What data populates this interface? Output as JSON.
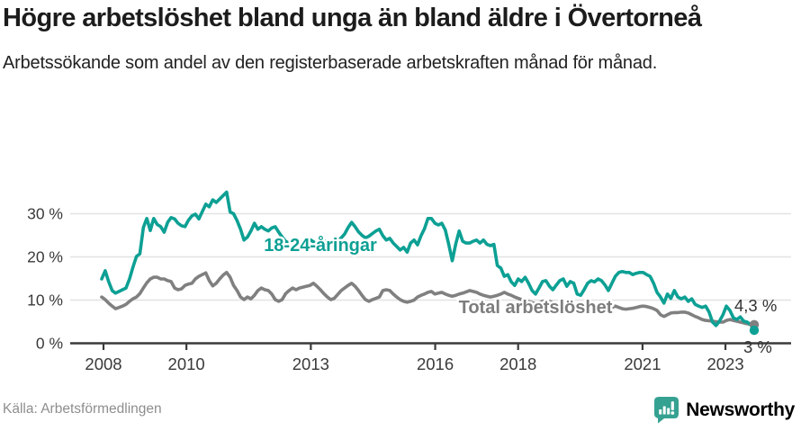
{
  "header": {
    "title": "Högre arbetslöshet bland unga än bland äldre i Övertorneå",
    "subtitle": "Arbetssökande som andel av den registerbaserade arbetskraften månad för månad."
  },
  "footer": {
    "source": "Källa: Arbetsförmedlingen",
    "logo_text": "Newsworthy",
    "logo_icon": "newsworthy-speech-bubble-bar-chart"
  },
  "colors": {
    "youth_line": "#0da094",
    "total_line": "#808080",
    "total_label": "#7d7d7d",
    "axis": "#3a3a3a",
    "grid": "#e2e2e2",
    "end_label": "#333333",
    "logo_teal": "#35a191"
  },
  "chart_data": {
    "type": "line",
    "title": "Högre arbetslöshet bland unga än bland äldre i Övertorneå",
    "subtitle": "Arbetssökande som andel av den registerbaserade arbetskraften månad för månad.",
    "x_unit": "month",
    "x_start": "2008-01",
    "x_end": "2023-09",
    "x_tick_years": [
      2008,
      2010,
      2013,
      2016,
      2018,
      2021,
      2023
    ],
    "y_ticks": [
      {
        "label": "0 %",
        "value": 0
      },
      {
        "label": "10 %",
        "value": 10
      },
      {
        "label": "20 %",
        "value": 20
      },
      {
        "label": "30 %",
        "value": 30
      }
    ],
    "ylim": [
      0,
      36
    ],
    "grid": "horizontal",
    "legend_position": "inline-labels",
    "series": [
      {
        "name": "Total arbetslöshet",
        "color": "#808080",
        "end_label": "4,3 %",
        "end_value": 4.3,
        "values": [
          10.7,
          10.1,
          9.3,
          8.6,
          8.0,
          8.3,
          8.6,
          9.0,
          9.7,
          10.3,
          10.7,
          11.5,
          12.8,
          14.0,
          14.9,
          15.3,
          15.3,
          14.9,
          14.9,
          14.5,
          14.3,
          12.8,
          12.4,
          12.6,
          13.4,
          13.7,
          13.9,
          14.9,
          15.5,
          15.9,
          16.3,
          14.5,
          13.3,
          13.9,
          14.9,
          15.8,
          16.4,
          15.3,
          13.4,
          12.2,
          10.7,
          10.1,
          10.7,
          10.3,
          11.1,
          12.2,
          12.8,
          12.4,
          12.2,
          11.4,
          10.1,
          9.7,
          10.1,
          11.5,
          12.2,
          12.8,
          12.4,
          12.8,
          13.0,
          13.2,
          13.4,
          13.9,
          13.2,
          12.4,
          11.5,
          10.7,
          10.1,
          10.4,
          11.3,
          12.2,
          12.8,
          13.4,
          13.9,
          13.2,
          12.2,
          11.1,
          10.1,
          9.7,
          10.1,
          10.4,
          10.7,
          12.2,
          12.4,
          12.2,
          11.4,
          10.7,
          10.1,
          9.7,
          9.5,
          9.7,
          10.0,
          10.7,
          11.1,
          11.4,
          11.8,
          12.0,
          11.4,
          11.6,
          11.8,
          11.4,
          11.1,
          10.9,
          11.1,
          11.4,
          11.6,
          11.9,
          12.2,
          12.0,
          11.8,
          11.4,
          11.1,
          10.9,
          10.7,
          10.9,
          11.1,
          11.4,
          11.8,
          11.4,
          11.1,
          10.7,
          10.4,
          10.1,
          9.9,
          9.7,
          9.4,
          9.2,
          9.4,
          9.7,
          9.9,
          9.7,
          9.4,
          9.2,
          9.0,
          8.8,
          8.6,
          8.4,
          8.3,
          8.1,
          8.3,
          8.4,
          8.6,
          8.4,
          8.3,
          8.1,
          7.9,
          7.7,
          7.9,
          8.3,
          8.6,
          8.3,
          8.0,
          7.9,
          8.0,
          8.1,
          8.3,
          8.5,
          8.6,
          8.5,
          8.3,
          8.0,
          7.6,
          6.6,
          6.2,
          6.6,
          7.0,
          7.1,
          7.1,
          7.2,
          7.2,
          7.0,
          6.6,
          6.2,
          5.9,
          5.5,
          5.3,
          5.2,
          5.1,
          5.0,
          4.9,
          4.9,
          5.3,
          5.5,
          5.3,
          5.1,
          4.9,
          4.7,
          4.5,
          4.4,
          4.3
        ]
      },
      {
        "name": "18-24-åringar",
        "color": "#0da094",
        "end_label": "3 %",
        "end_value": 3.0,
        "values": [
          14.9,
          16.8,
          14.3,
          12.2,
          11.6,
          12.0,
          12.4,
          12.8,
          14.9,
          17.6,
          20.1,
          20.7,
          26.8,
          28.9,
          26.1,
          28.9,
          27.5,
          27.0,
          25.7,
          28.0,
          29.1,
          28.8,
          27.8,
          27.2,
          27.0,
          28.5,
          29.5,
          29.9,
          28.8,
          30.5,
          32.2,
          31.6,
          33.2,
          32.6,
          33.4,
          34.2,
          35.0,
          30.4,
          30.0,
          28.4,
          26.4,
          23.9,
          24.6,
          26.0,
          27.8,
          26.4,
          27.0,
          26.4,
          26.0,
          26.7,
          27.0,
          25.7,
          24.6,
          23.6,
          23.2,
          23.6,
          24.0,
          23.6,
          23.2,
          23.6,
          24.0,
          23.5,
          23.0,
          23.4,
          23.8,
          23.4,
          23.0,
          23.4,
          23.8,
          24.4,
          25.3,
          26.8,
          28.0,
          27.0,
          25.8,
          25.0,
          24.4,
          24.8,
          25.4,
          26.0,
          26.4,
          24.9,
          23.9,
          24.3,
          23.2,
          22.4,
          21.6,
          22.2,
          21.1,
          23.2,
          23.9,
          22.8,
          24.9,
          26.5,
          28.9,
          28.9,
          27.8,
          27.4,
          27.8,
          26.2,
          22.9,
          19.1,
          23.0,
          26.0,
          23.6,
          23.2,
          23.2,
          23.6,
          23.9,
          23.2,
          23.9,
          22.9,
          22.6,
          22.9,
          18.0,
          17.4,
          15.5,
          15.9,
          14.2,
          13.4,
          14.9,
          14.3,
          15.3,
          13.9,
          12.2,
          11.4,
          12.8,
          14.3,
          14.5,
          13.2,
          12.4,
          13.5,
          14.5,
          14.9,
          13.2,
          14.3,
          13.9,
          11.4,
          11.1,
          12.4,
          13.9,
          14.5,
          14.2,
          14.9,
          14.5,
          13.5,
          12.2,
          13.9,
          15.5,
          16.4,
          16.6,
          16.4,
          16.4,
          15.9,
          16.2,
          16.4,
          16.4,
          15.9,
          15.5,
          13.9,
          11.8,
          10.7,
          9.3,
          11.4,
          10.4,
          12.2,
          10.7,
          10.3,
          10.7,
          9.7,
          10.3,
          9.0,
          8.6,
          8.3,
          8.6,
          7.2,
          4.9,
          4.1,
          5.1,
          6.6,
          8.6,
          7.6,
          5.9,
          5.5,
          6.1,
          5.1,
          4.9,
          4.3,
          3.0
        ]
      }
    ]
  }
}
